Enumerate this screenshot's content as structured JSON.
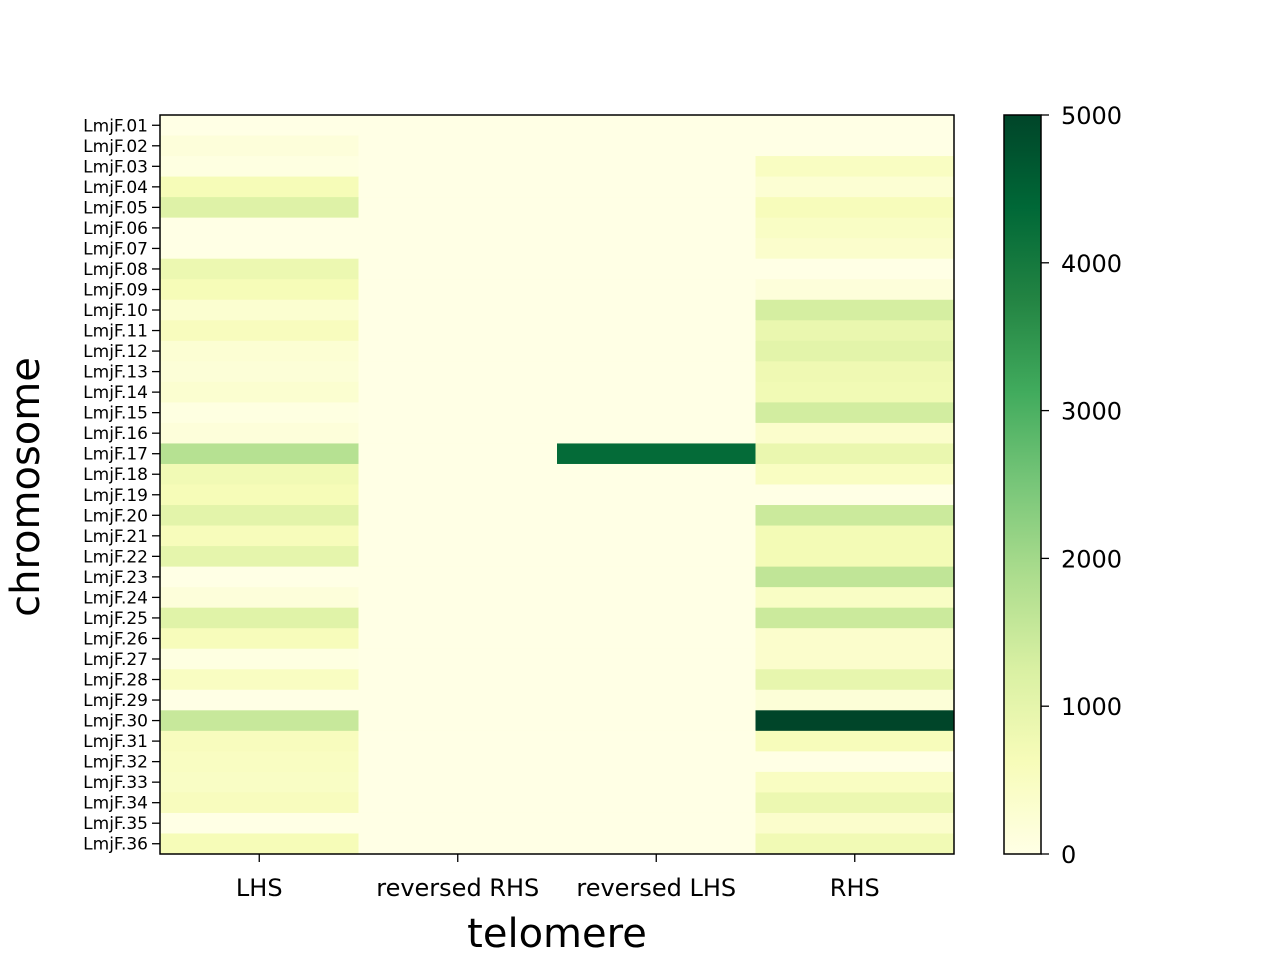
{
  "chart_data": {
    "type": "heatmap",
    "title": "",
    "xlabel": "telomere",
    "ylabel": "chromosome",
    "x_categories": [
      "LHS",
      "reversed RHS",
      "reversed LHS",
      "RHS"
    ],
    "y_categories": [
      "LmjF.01",
      "LmjF.02",
      "LmjF.03",
      "LmjF.04",
      "LmjF.05",
      "LmjF.06",
      "LmjF.07",
      "LmjF.08",
      "LmjF.09",
      "LmjF.10",
      "LmjF.11",
      "LmjF.12",
      "LmjF.13",
      "LmjF.14",
      "LmjF.15",
      "LmjF.16",
      "LmjF.17",
      "LmjF.18",
      "LmjF.19",
      "LmjF.20",
      "LmjF.21",
      "LmjF.22",
      "LmjF.23",
      "LmjF.24",
      "LmjF.25",
      "LmjF.26",
      "LmjF.27",
      "LmjF.28",
      "LmjF.29",
      "LmjF.30",
      "LmjF.31",
      "LmjF.32",
      "LmjF.33",
      "LmjF.34",
      "LmjF.35",
      "LmjF.36"
    ],
    "values": [
      [
        0,
        0,
        0,
        0
      ],
      [
        150,
        0,
        0,
        0
      ],
      [
        50,
        0,
        0,
        500
      ],
      [
        650,
        0,
        0,
        250
      ],
      [
        1150,
        0,
        0,
        600
      ],
      [
        0,
        0,
        0,
        450
      ],
      [
        0,
        0,
        0,
        350
      ],
      [
        850,
        0,
        0,
        0
      ],
      [
        650,
        0,
        0,
        150
      ],
      [
        300,
        0,
        0,
        1300
      ],
      [
        550,
        0,
        0,
        900
      ],
      [
        250,
        0,
        0,
        1050
      ],
      [
        200,
        0,
        0,
        800
      ],
      [
        300,
        0,
        0,
        750
      ],
      [
        50,
        0,
        0,
        1350
      ],
      [
        150,
        0,
        0,
        350
      ],
      [
        1750,
        0,
        4300,
        900
      ],
      [
        750,
        0,
        0,
        500
      ],
      [
        650,
        0,
        0,
        0
      ],
      [
        1050,
        0,
        0,
        1450
      ],
      [
        600,
        0,
        0,
        700
      ],
      [
        1000,
        0,
        0,
        700
      ],
      [
        0,
        0,
        0,
        1600
      ],
      [
        150,
        0,
        0,
        450
      ],
      [
        1100,
        0,
        0,
        1450
      ],
      [
        600,
        0,
        0,
        350
      ],
      [
        50,
        0,
        0,
        350
      ],
      [
        500,
        0,
        0,
        950
      ],
      [
        0,
        0,
        0,
        200
      ],
      [
        1500,
        0,
        0,
        5000
      ],
      [
        550,
        0,
        0,
        600
      ],
      [
        500,
        0,
        0,
        0
      ],
      [
        450,
        0,
        0,
        500
      ],
      [
        550,
        0,
        0,
        850
      ],
      [
        0,
        0,
        0,
        350
      ],
      [
        650,
        0,
        0,
        750
      ]
    ],
    "colorbar": {
      "vmin": 0,
      "vmax": 5000,
      "ticks": [
        0,
        1000,
        2000,
        3000,
        4000,
        5000
      ],
      "colormap": "YlGn",
      "colormap_stops": [
        "#ffffe5",
        "#f7fcb9",
        "#d9f0a3",
        "#addd8e",
        "#78c679",
        "#41ab5d",
        "#238443",
        "#006837",
        "#004529"
      ]
    },
    "grid": false
  }
}
